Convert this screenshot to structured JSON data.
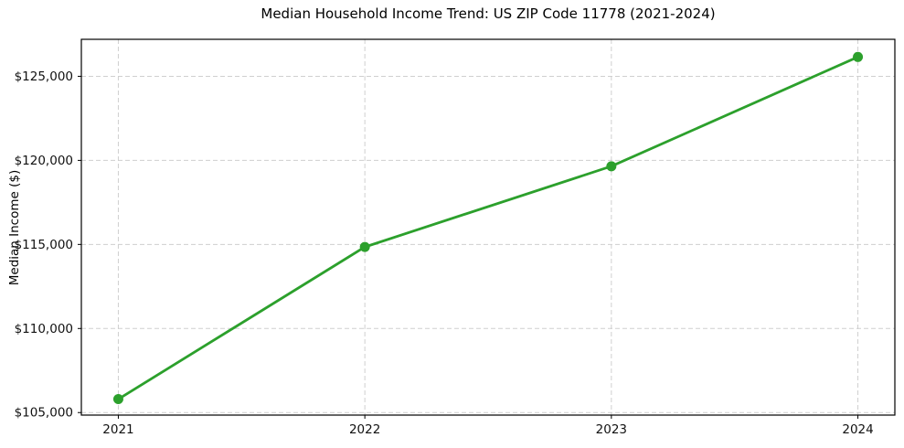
{
  "chart_data": {
    "type": "line",
    "title": "Median Household Income Trend: US ZIP Code 11778 (2021-2024)",
    "xlabel": "",
    "ylabel": "Median Income ($)",
    "x": [
      2021,
      2022,
      2023,
      2024
    ],
    "xtick_labels": [
      "2021",
      "2022",
      "2023",
      "2024"
    ],
    "series": [
      {
        "name": "Median Income",
        "values": [
          105800,
          114850,
          119650,
          126150
        ],
        "color": "#2ca02c",
        "marker": "circle",
        "marker_radius": 5.5,
        "line_width": 2.8
      }
    ],
    "yticks": [
      105000,
      110000,
      115000,
      120000,
      125000
    ],
    "ytick_labels": [
      "$105,000",
      "$110,000",
      "$115,000",
      "$120,000",
      "$125,000"
    ],
    "xlim": [
      2020.85,
      2024.15
    ],
    "ylim": [
      104850,
      127200
    ],
    "grid": {
      "show": true,
      "axes": "both",
      "style": "dashed",
      "color": "#cfcfcf"
    },
    "legend": "none",
    "text_color": "#000000",
    "background": "#ffffff"
  }
}
